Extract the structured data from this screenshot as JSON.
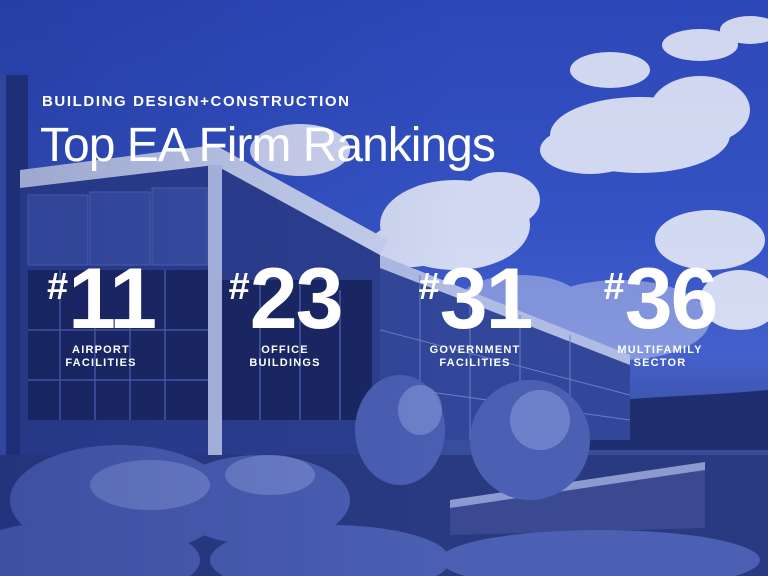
{
  "header": {
    "kicker": "BUILDING DESIGN+CONSTRUCTION",
    "title": "Top EA Firm Rankings"
  },
  "rankings": [
    {
      "hash": "#",
      "rank": "11",
      "line1": "AIRPORT",
      "line2": "FACILITIES"
    },
    {
      "hash": "#",
      "rank": "23",
      "line1": "OFFICE",
      "line2": "BUILDINGS"
    },
    {
      "hash": "#",
      "rank": "31",
      "line1": "GOVERNMENT",
      "line2": "FACILITIES"
    },
    {
      "hash": "#",
      "rank": "36",
      "line1": "MULTIFAMILY",
      "line2": "SECTOR"
    }
  ],
  "colors": {
    "tint": "#2c47b8",
    "text": "#ffffff"
  },
  "background": {
    "description_icon": "office-building-photo"
  }
}
